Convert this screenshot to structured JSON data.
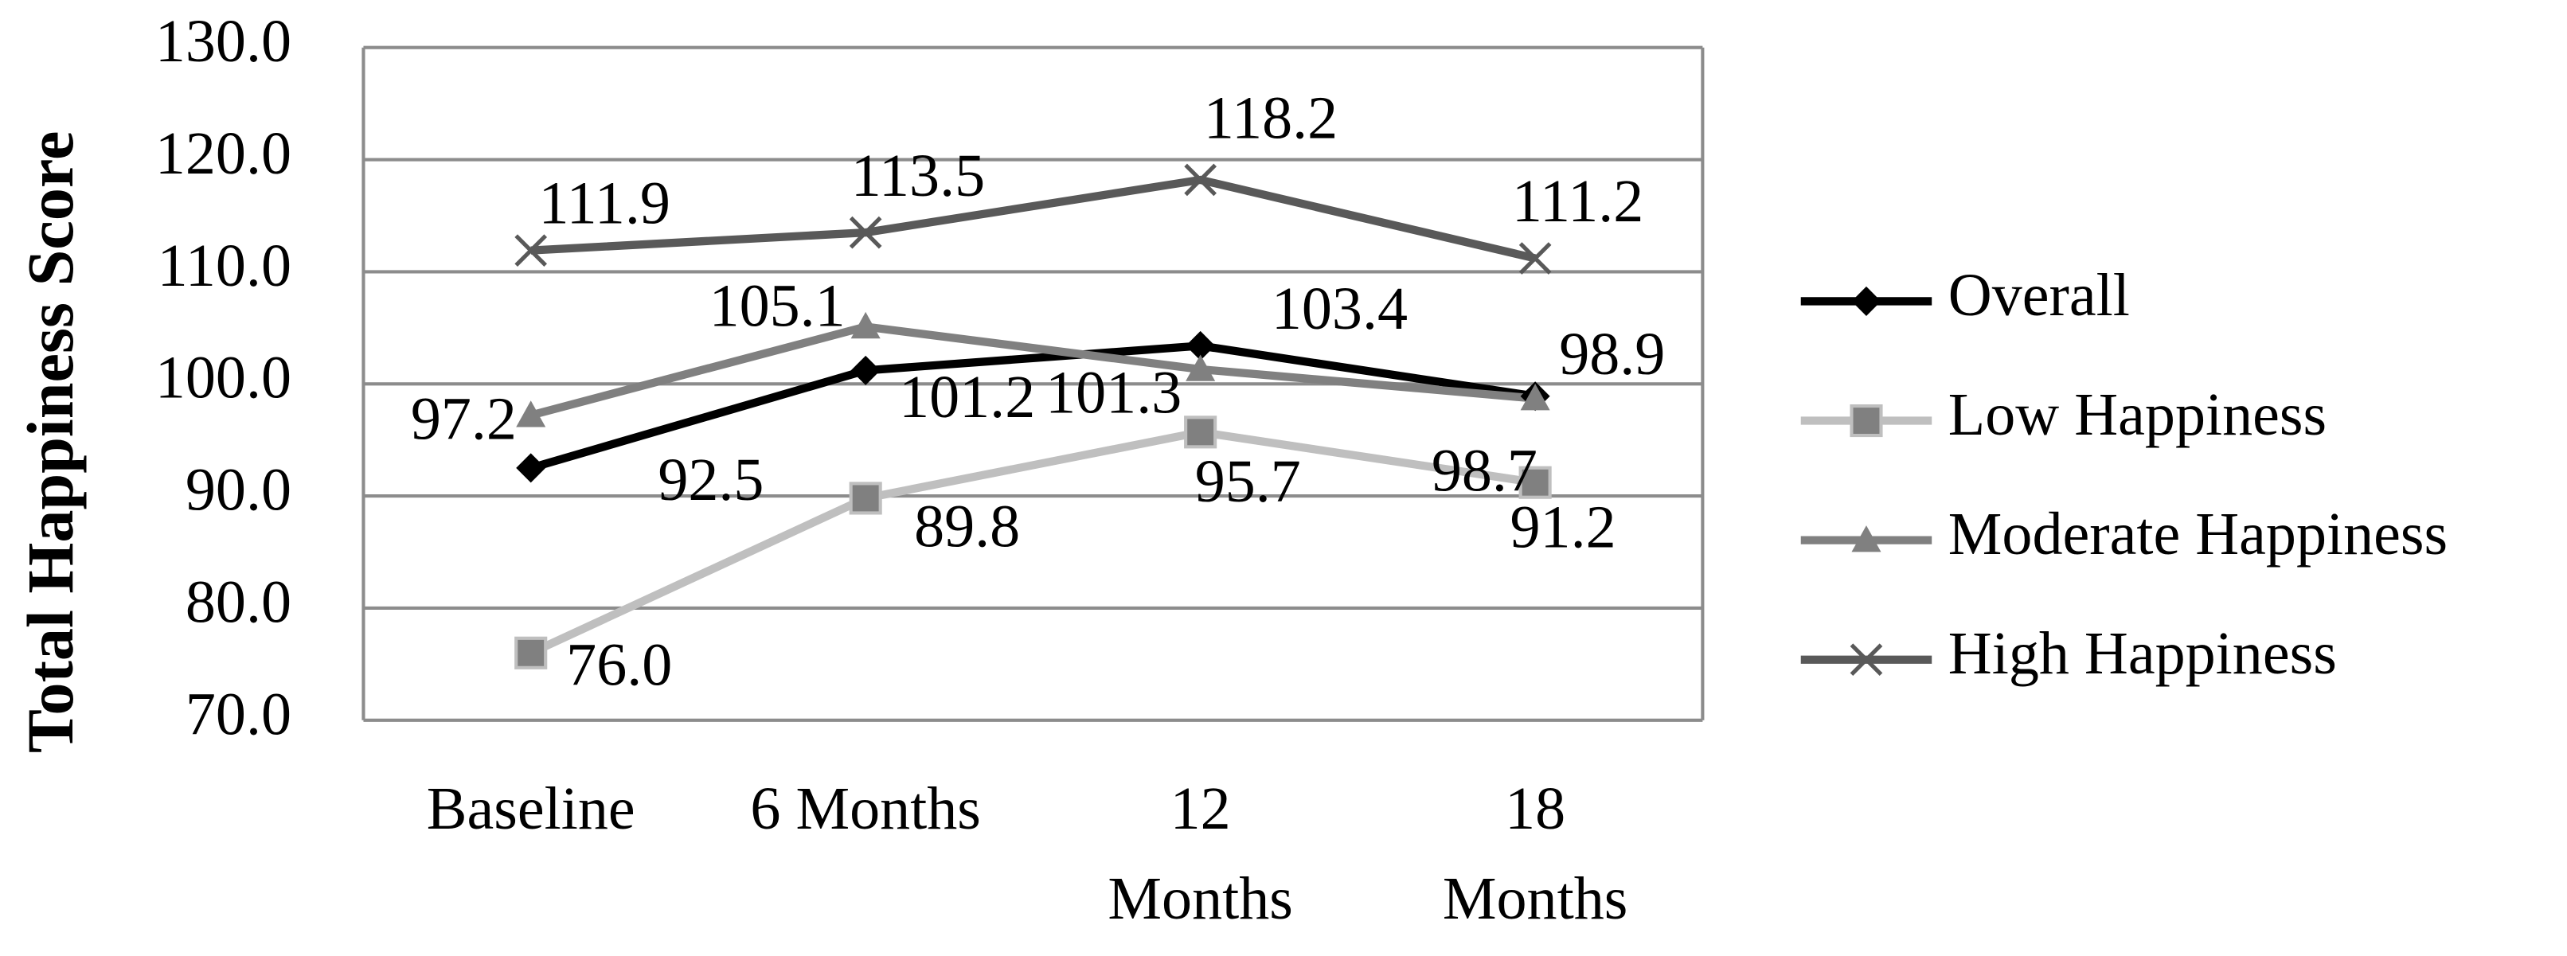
{
  "chart_data": {
    "type": "line",
    "y_label": "Total Happiness Score",
    "categories": [
      "Baseline",
      "6 Months",
      "12\nMonths",
      "18\nMonths"
    ],
    "series": [
      {
        "name": "Overall",
        "color": "#000000",
        "marker": "diamond",
        "values": [
          92.5,
          101.2,
          103.4,
          98.9
        ],
        "value_labels": [
          "92.5",
          "101.2",
          "103.4",
          "98.9"
        ]
      },
      {
        "name": "Low Happiness",
        "color": "#bfbfbf",
        "marker": "square",
        "values": [
          76.0,
          89.8,
          95.7,
          91.2
        ],
        "value_labels": [
          "76.0",
          "89.8",
          "95.7",
          "91.2"
        ]
      },
      {
        "name": "Moderate Happiness",
        "color": "#808080",
        "marker": "triangle",
        "values": [
          97.2,
          105.1,
          101.3,
          98.7
        ],
        "value_labels": [
          "97.2",
          "105.1",
          "101.3",
          "98.7"
        ]
      },
      {
        "name": "High Happiness",
        "color": "#595959",
        "marker": "x",
        "values": [
          111.9,
          113.5,
          118.2,
          111.2
        ],
        "value_labels": [
          "111.9",
          "113.5",
          "118.2",
          "111.2"
        ]
      }
    ],
    "ylim": [
      70,
      130
    ],
    "yticks": [
      {
        "value": 70,
        "label": "70.0"
      },
      {
        "value": 80,
        "label": "80.0"
      },
      {
        "value": 90,
        "label": "90.0"
      },
      {
        "value": 100,
        "label": "100.0"
      },
      {
        "value": 110,
        "label": "110.0"
      },
      {
        "value": 120,
        "label": "120.0"
      },
      {
        "value": 130,
        "label": "130.0"
      }
    ],
    "grid": true,
    "legend": "right"
  }
}
